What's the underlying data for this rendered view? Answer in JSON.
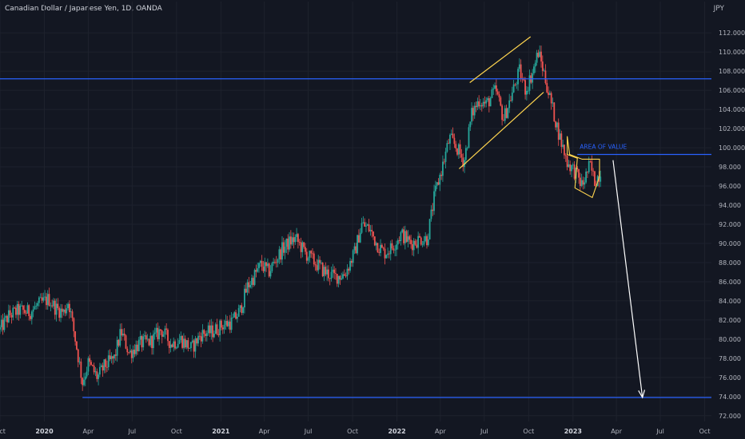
{
  "chart_data": {
    "type": "line",
    "title": "Canadian Dollar / Japanese Yen, 1D, OANDA",
    "currency": "JPY",
    "ylim": [
      71.4,
      113.6
    ],
    "y_ticks": [
      72,
      74,
      76,
      78,
      80,
      82,
      84,
      86,
      88,
      90,
      92,
      94,
      96,
      98,
      100,
      102,
      104,
      106,
      108,
      110,
      112
    ],
    "x_range": [
      "2019-10-01",
      "2023-10-15"
    ],
    "x_ticks": [
      {
        "date": "2019-10-01",
        "label": "Oct",
        "year": false
      },
      {
        "date": "2020-01-01",
        "label": "2020",
        "year": true
      },
      {
        "date": "2020-04-01",
        "label": "Apr",
        "year": false
      },
      {
        "date": "2020-07-01",
        "label": "Jul",
        "year": false
      },
      {
        "date": "2020-10-01",
        "label": "Oct",
        "year": false
      },
      {
        "date": "2021-01-01",
        "label": "2021",
        "year": true
      },
      {
        "date": "2021-04-01",
        "label": "Apr",
        "year": false
      },
      {
        "date": "2021-07-01",
        "label": "Jul",
        "year": false
      },
      {
        "date": "2021-10-01",
        "label": "Oct",
        "year": false
      },
      {
        "date": "2022-01-01",
        "label": "2022",
        "year": true
      },
      {
        "date": "2022-04-01",
        "label": "Apr",
        "year": false
      },
      {
        "date": "2022-07-01",
        "label": "Jul",
        "year": false
      },
      {
        "date": "2022-10-01",
        "label": "Oct",
        "year": false
      },
      {
        "date": "2023-01-01",
        "label": "2023",
        "year": true
      },
      {
        "date": "2023-04-01",
        "label": "Apr",
        "year": false
      },
      {
        "date": "2023-07-01",
        "label": "Jul",
        "year": false
      },
      {
        "date": "2023-10-01",
        "label": "Oct",
        "year": false
      }
    ],
    "series": [
      {
        "points": [
          [
            "2019-10-01",
            81.0
          ],
          [
            "2019-10-20",
            82.5
          ],
          [
            "2019-11-10",
            83.0
          ],
          [
            "2019-12-01",
            82.8
          ],
          [
            "2019-12-20",
            83.6
          ],
          [
            "2020-01-10",
            84.2
          ],
          [
            "2020-01-25",
            83.2
          ],
          [
            "2020-02-10",
            82.8
          ],
          [
            "2020-02-20",
            84.0
          ],
          [
            "2020-03-05",
            80.0
          ],
          [
            "2020-03-20",
            75.5
          ],
          [
            "2020-04-01",
            77.5
          ],
          [
            "2020-04-20",
            76.0
          ],
          [
            "2020-05-05",
            77.2
          ],
          [
            "2020-05-25",
            78.0
          ],
          [
            "2020-06-08",
            80.8
          ],
          [
            "2020-06-25",
            78.5
          ],
          [
            "2020-07-15",
            79.5
          ],
          [
            "2020-08-10",
            79.8
          ],
          [
            "2020-08-30",
            81.0
          ],
          [
            "2020-09-20",
            79.5
          ],
          [
            "2020-10-10",
            80.0
          ],
          [
            "2020-11-01",
            79.0
          ],
          [
            "2020-11-20",
            80.5
          ],
          [
            "2020-12-15",
            80.8
          ],
          [
            "2021-01-05",
            81.5
          ],
          [
            "2021-01-25",
            81.8
          ],
          [
            "2021-02-10",
            83.0
          ],
          [
            "2021-02-25",
            85.5
          ],
          [
            "2021-03-10",
            86.5
          ],
          [
            "2021-03-25",
            87.8
          ],
          [
            "2021-04-10",
            87.0
          ],
          [
            "2021-04-25",
            88.3
          ],
          [
            "2021-05-10",
            89.5
          ],
          [
            "2021-05-25",
            90.2
          ],
          [
            "2021-06-05",
            90.5
          ],
          [
            "2021-06-25",
            89.0
          ],
          [
            "2021-07-15",
            88.0
          ],
          [
            "2021-08-05",
            87.0
          ],
          [
            "2021-08-25",
            86.5
          ],
          [
            "2021-09-15",
            86.8
          ],
          [
            "2021-10-05",
            89.0
          ],
          [
            "2021-10-20",
            92.0
          ],
          [
            "2021-11-05",
            91.5
          ],
          [
            "2021-11-20",
            90.0
          ],
          [
            "2021-12-05",
            89.0
          ],
          [
            "2021-12-20",
            89.5
          ],
          [
            "2022-01-10",
            91.0
          ],
          [
            "2022-01-30",
            90.0
          ],
          [
            "2022-02-20",
            90.5
          ],
          [
            "2022-03-05",
            90.5
          ],
          [
            "2022-03-20",
            95.0
          ],
          [
            "2022-04-05",
            98.0
          ],
          [
            "2022-04-20",
            101.0
          ],
          [
            "2022-05-05",
            100.0
          ],
          [
            "2022-05-20",
            98.5
          ],
          [
            "2022-06-05",
            103.5
          ],
          [
            "2022-06-20",
            105.0
          ],
          [
            "2022-07-05",
            104.5
          ],
          [
            "2022-07-25",
            106.0
          ],
          [
            "2022-08-10",
            103.0
          ],
          [
            "2022-08-30",
            106.0
          ],
          [
            "2022-09-12",
            108.0
          ],
          [
            "2022-09-25",
            106.0
          ],
          [
            "2022-10-10",
            108.0
          ],
          [
            "2022-10-21",
            110.0
          ],
          [
            "2022-11-01",
            108.0
          ],
          [
            "2022-11-10",
            106.0
          ],
          [
            "2022-11-25",
            103.0
          ],
          [
            "2022-12-05",
            101.0
          ],
          [
            "2022-12-20",
            98.5
          ],
          [
            "2023-01-05",
            97.5
          ],
          [
            "2023-01-20",
            96.0
          ],
          [
            "2023-02-05",
            98.2
          ],
          [
            "2023-02-15",
            96.5
          ],
          [
            "2023-02-28",
            97.5
          ]
        ]
      }
    ],
    "horizontal_lines": [
      {
        "y": 107.2,
        "start": "2019-10-01",
        "end": "2023-10-15",
        "color": "#2962ff"
      },
      {
        "y": 99.3,
        "start": "2023-01-10",
        "end": "2023-10-15",
        "color": "#2962ff"
      },
      {
        "y": 73.9,
        "start": "2020-03-20",
        "end": "2023-10-15",
        "color": "#2962ff"
      }
    ],
    "trend_lines": [
      {
        "points": [
          [
            "2022-06-01",
            106.8
          ],
          [
            "2022-10-05",
            111.6
          ]
        ],
        "color": "#ffd54f"
      },
      {
        "points": [
          [
            "2022-05-10",
            97.8
          ],
          [
            "2022-11-01",
            105.8
          ]
        ],
        "color": "#ffd54f"
      }
    ],
    "flag_pattern": {
      "points": [
        [
          "2022-12-20",
          101.2
        ],
        [
          "2022-12-25",
          99.3
        ],
        [
          "2023-01-20",
          98.8
        ],
        [
          "2023-02-25",
          98.8
        ],
        [
          "2023-02-25",
          97.0
        ],
        [
          "2023-02-10",
          94.8
        ],
        [
          "2023-01-05",
          95.8
        ],
        [
          "2023-01-10",
          98.9
        ],
        [
          "2022-12-20",
          99.3
        ],
        [
          "2022-12-20",
          101.2
        ]
      ],
      "color": "#ffd54f"
    },
    "arrow": {
      "from": [
        "2023-03-25",
        98.7
      ],
      "to": [
        "2023-05-25",
        73.9
      ],
      "color": "#ffffff"
    },
    "annotations": [
      {
        "text": "AREA OF VALUE",
        "date": "2023-01-15",
        "y": 99.9,
        "color": "#2962ff"
      }
    ],
    "grid": true,
    "colors": {
      "background": "#131722",
      "up": "#26a69a",
      "down": "#ef5350",
      "axis_text": "#b2b5be"
    }
  }
}
